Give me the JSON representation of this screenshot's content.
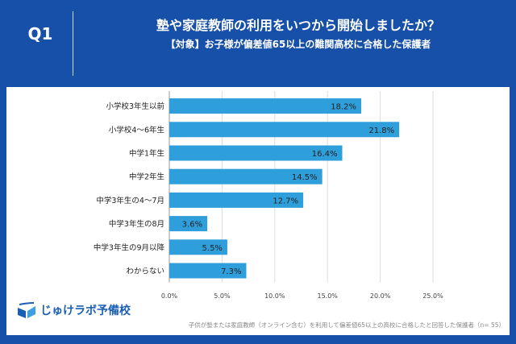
{
  "header": {
    "question": "Q1",
    "title": "塾や家庭教師の利用をいつから開始しましたか？",
    "subtitle": "【対象】お子様が偏差値65以上の難関高校に合格した保護者"
  },
  "footer": {
    "logo": "じゅけラボ予備校",
    "note": "子供が塾または家庭教師（オンライン含む）を利用して偏差値65以上の高校に合格したと回答した保護者（n= 55）"
  },
  "colors": {
    "background": "#1750a8",
    "bar": "#2f9fdc"
  },
  "chart_data": {
    "type": "bar",
    "orientation": "horizontal",
    "categories": [
      "小学校3年生以前",
      "小学校4～6年生",
      "中学1年生",
      "中学2年生",
      "中学3年生の4～7月",
      "中学3年生の8月",
      "中学3年生の9月以降",
      "わからない"
    ],
    "values": [
      18.2,
      21.8,
      16.4,
      14.5,
      12.7,
      3.6,
      5.5,
      7.3
    ],
    "data_labels": [
      "18.2%",
      "21.8%",
      "16.4%",
      "14.5%",
      "12.7%",
      "3.6%",
      "5.5%",
      "7.3%"
    ],
    "xlim": [
      0,
      25
    ],
    "ticks": [
      "0.0%",
      "5.0%",
      "10.0%",
      "15.0%",
      "20.0%",
      "25.0%"
    ],
    "grid": true
  }
}
